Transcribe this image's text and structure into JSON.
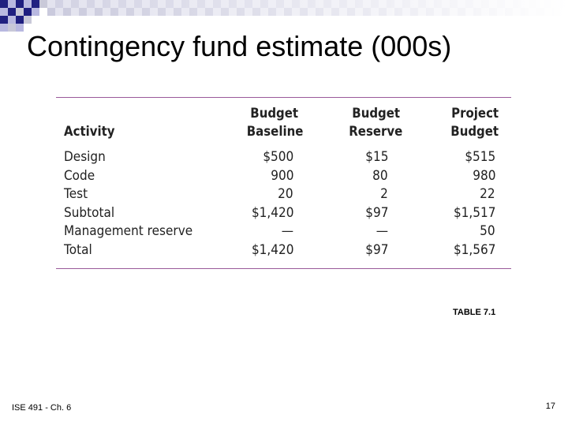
{
  "slide": {
    "title": "Contingency fund estimate (000s)",
    "caption": "TABLE 7.1",
    "footer_left": "ISE 491 - Ch. 6",
    "page_number": "17"
  },
  "table": {
    "headers": {
      "activity": "Activity",
      "baseline_1": "Budget",
      "baseline_2": "Baseline",
      "reserve_1": "Budget",
      "reserve_2": "Reserve",
      "project_1": "Project",
      "project_2": "Budget"
    },
    "rows": [
      {
        "activity": "Design",
        "baseline": "$500",
        "reserve": "$15",
        "project": "$515"
      },
      {
        "activity": "Code",
        "baseline": "900",
        "reserve": "80",
        "project": "980"
      },
      {
        "activity": "Test",
        "baseline": "20",
        "reserve": "2",
        "project": "22"
      },
      {
        "activity": "Subtotal",
        "baseline": "$1,420",
        "reserve": "$97",
        "project": "$1,517"
      },
      {
        "activity": "Management reserve",
        "baseline": "—",
        "reserve": "—",
        "project": "50"
      },
      {
        "activity": "Total",
        "baseline": "$1,420",
        "reserve": "$97",
        "project": "$1,567"
      }
    ]
  },
  "colors": {
    "band_primary": "#1f1f80",
    "band_secondary": "#b8b8e0",
    "rule": "#9a5a9a"
  }
}
